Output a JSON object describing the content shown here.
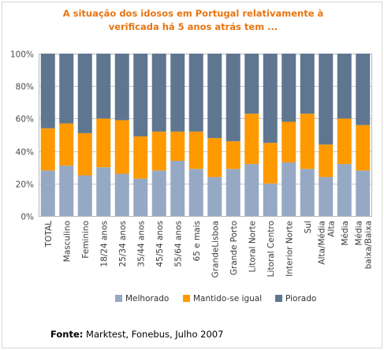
{
  "chart_data": {
    "type": "bar",
    "stacked": true,
    "title_lines": [
      "A situação dos idosos em Portugal relativamente à",
      "verificada há 5 anos atrás tem ..."
    ],
    "categories": [
      [
        "TOTAL"
      ],
      [
        "Masculino"
      ],
      [
        "Feminino"
      ],
      [
        "18/24 anos"
      ],
      [
        "25/34 anos"
      ],
      [
        "35/44 anos"
      ],
      [
        "45/54 anos"
      ],
      [
        "55/64 anos"
      ],
      [
        "65 e mais"
      ],
      [
        "GrandeLisboa"
      ],
      [
        "Grande Porto"
      ],
      [
        "Litoral Norte"
      ],
      [
        "Litoral Centro"
      ],
      [
        "Interior Norte"
      ],
      [
        "Sul"
      ],
      [
        "Alta/Média",
        "Alta"
      ],
      [
        "Média"
      ],
      [
        "Média",
        "baixa/Baixa"
      ]
    ],
    "series": [
      {
        "name": "Melhorado",
        "color": "#96a9c4",
        "values": [
          28,
          31,
          25,
          30,
          26,
          23,
          28,
          34,
          29,
          24,
          29,
          32,
          20,
          33,
          29,
          24,
          32,
          28
        ]
      },
      {
        "name": "Mantido-se igual",
        "color": "#ff9900",
        "values": [
          26,
          26,
          26,
          30,
          33,
          26,
          24,
          18,
          23,
          24,
          17,
          31,
          25,
          25,
          34,
          20,
          28,
          28
        ]
      },
      {
        "name": "Piorado",
        "color": "#5f7691",
        "values": [
          46,
          43,
          49,
          40,
          41,
          51,
          48,
          48,
          48,
          52,
          54,
          37,
          55,
          42,
          37,
          56,
          40,
          44
        ]
      }
    ],
    "ylim": [
      0,
      100
    ],
    "yticks": [
      0,
      20,
      40,
      60,
      80,
      100
    ],
    "ytick_labels": [
      "0%",
      "20%",
      "40%",
      "60%",
      "80%",
      "100%"
    ],
    "legend_position": "bottom",
    "grid": true
  },
  "source": {
    "label": "Fonte:",
    "text": " Marktest, Fonebus, Julho 2007"
  }
}
